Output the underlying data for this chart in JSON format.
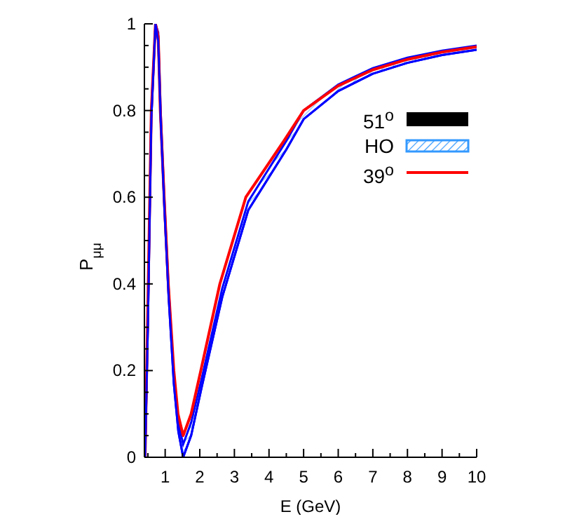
{
  "chart_data": {
    "type": "line",
    "xlabel": "E (GeV)",
    "ylabel": "P$_{μμ}$",
    "xlim": [
      0.4,
      10
    ],
    "ylim": [
      0,
      1
    ],
    "xticks": [
      {
        "value": 0.5,
        "label": null
      },
      1,
      {
        "value": 1.5,
        "label": null
      },
      2,
      {
        "value": 2.5,
        "label": null
      },
      3,
      {
        "value": 3.5,
        "label": null
      },
      4,
      {
        "value": 4.5,
        "label": null
      },
      5,
      {
        "value": 5.5,
        "label": null
      },
      6,
      {
        "value": 6.5,
        "label": null
      },
      7,
      {
        "value": 7.5,
        "label": null
      },
      8,
      {
        "value": 8.5,
        "label": null
      },
      9,
      {
        "value": 9.5,
        "label": null
      },
      10
    ],
    "yticks": [
      0,
      {
        "value": 0.05,
        "label": null
      },
      {
        "value": 0.1,
        "label": null
      },
      {
        "value": 0.15,
        "label": null
      },
      0.2,
      {
        "value": 0.25,
        "label": null
      },
      {
        "value": 0.3,
        "label": null
      },
      {
        "value": 0.35,
        "label": null
      },
      0.4,
      {
        "value": 0.45,
        "label": null
      },
      {
        "value": 0.5,
        "label": null
      },
      {
        "value": 0.55,
        "label": null
      },
      0.6,
      {
        "value": 0.65,
        "label": null
      },
      {
        "value": 0.7,
        "label": null
      },
      {
        "value": 0.75,
        "label": null
      },
      0.8,
      {
        "value": 0.85,
        "label": null
      },
      {
        "value": 0.9,
        "label": null
      },
      {
        "value": 0.95,
        "label": null
      },
      1
    ],
    "legend": "top right",
    "grid": false,
    "series": [
      {
        "name": "51$^{o}$",
        "type": "area",
        "color": "#000000"
      },
      {
        "name": "HO",
        "color": "#0000ff",
        "x": [
          0.42,
          0.5,
          0.6,
          0.72,
          0.8,
          0.87,
          0.98,
          1.1,
          1.25,
          1.38,
          1.52,
          1.75,
          2.05,
          2.65,
          3.4,
          4.5,
          5,
          6,
          7,
          8,
          9,
          10
        ],
        "values": [
          0,
          0.3,
          0.78,
          1.0,
          0.96,
          0.78,
          0.57,
          0.37,
          0.17,
          0.06,
          0,
          0.05,
          0.16,
          0.37,
          0.57,
          0.71,
          0.78,
          0.845,
          0.885,
          0.91,
          0.928,
          0.94
        ],
        "lower": [
          0,
          0.3,
          0.78,
          1.0,
          0.96,
          0.78,
          0.57,
          0.37,
          0.17,
          0.06,
          0,
          0.05,
          0.16,
          0.37,
          0.57,
          0.71,
          0.78,
          0.845,
          0.885,
          0.91,
          0.928,
          0.94
        ],
        "upper": [
          0,
          0.32,
          0.8,
          1.0,
          0.98,
          0.8,
          0.59,
          0.39,
          0.19,
          0.08,
          0.03,
          0.08,
          0.18,
          0.39,
          0.59,
          0.73,
          0.8,
          0.86,
          0.898,
          0.922,
          0.938,
          0.95
        ]
      },
      {
        "name": "39$^{o}$",
        "color": "#ff0000",
        "x": [
          0.42,
          0.5,
          0.6,
          0.72,
          0.8,
          0.86,
          0.97,
          1.09,
          1.25,
          1.37,
          1.52,
          1.75,
          2.03,
          2.58,
          3.33,
          4.43,
          5,
          6,
          7,
          8,
          9,
          10
        ],
        "values": [
          0,
          0.35,
          0.8,
          1.0,
          0.97,
          0.8,
          0.6,
          0.4,
          0.2,
          0.1,
          0.05,
          0.1,
          0.2,
          0.4,
          0.6,
          0.73,
          0.8,
          0.857,
          0.894,
          0.918,
          0.935,
          0.947
        ]
      }
    ]
  }
}
